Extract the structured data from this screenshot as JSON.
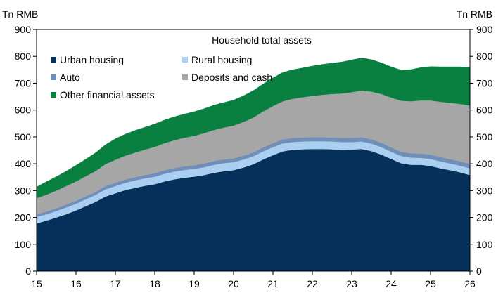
{
  "chart_data": {
    "type": "area",
    "stacked": true,
    "title": "Household total assets",
    "y_unit_left": "Tn RMB",
    "y_unit_right": "Tn RMB",
    "ylim": [
      0,
      900
    ],
    "y_ticks": [
      0,
      100,
      200,
      300,
      400,
      500,
      600,
      700,
      800,
      900
    ],
    "xlim": [
      15,
      26
    ],
    "x_ticks": [
      15,
      16,
      17,
      18,
      19,
      20,
      21,
      22,
      23,
      24,
      25,
      26
    ],
    "x_tick_labels": [
      "15",
      "16",
      "17",
      "18",
      "19",
      "20",
      "21",
      "22",
      "23",
      "24",
      "25",
      "26"
    ],
    "grid": false,
    "legend_position": "top-left",
    "x": [
      15.0,
      15.25,
      15.5,
      15.75,
      16.0,
      16.25,
      16.5,
      16.75,
      17.0,
      17.25,
      17.5,
      17.75,
      18.0,
      18.25,
      18.5,
      18.75,
      19.0,
      19.25,
      19.5,
      19.75,
      20.0,
      20.25,
      20.5,
      20.75,
      21.0,
      21.25,
      21.5,
      21.75,
      22.0,
      22.25,
      22.5,
      22.75,
      23.0,
      23.25,
      23.5,
      23.75,
      24.0,
      24.25,
      24.5,
      24.75,
      25.0,
      25.25,
      25.5,
      25.75,
      26.0
    ],
    "series": [
      {
        "name": "Urban housing",
        "color": "#06305a",
        "values": [
          178,
          188,
          200,
          212,
          226,
          242,
          258,
          278,
          290,
          302,
          310,
          318,
          324,
          334,
          342,
          348,
          352,
          358,
          366,
          372,
          376,
          386,
          398,
          416,
          432,
          446,
          452,
          454,
          455,
          455,
          454,
          452,
          453,
          455,
          447,
          434,
          418,
          402,
          396,
          396,
          392,
          383,
          376,
          368,
          358
        ]
      },
      {
        "name": "Rural housing",
        "color": "#aacff0",
        "values": [
          24,
          24,
          24,
          25,
          25,
          26,
          26,
          27,
          27,
          27,
          28,
          28,
          28,
          29,
          29,
          29,
          29,
          29,
          30,
          30,
          30,
          30,
          30,
          30,
          30,
          30,
          29,
          29,
          29,
          29,
          29,
          29,
          28,
          28,
          28,
          28,
          27,
          27,
          27,
          26,
          26,
          26,
          25,
          25,
          25
        ]
      },
      {
        "name": "Auto",
        "color": "#6f8fb9",
        "values": [
          10,
          10,
          10,
          11,
          11,
          11,
          11,
          12,
          12,
          12,
          12,
          12,
          13,
          13,
          13,
          13,
          13,
          14,
          14,
          14,
          14,
          14,
          14,
          15,
          15,
          15,
          15,
          15,
          15,
          15,
          15,
          15,
          16,
          16,
          16,
          16,
          16,
          16,
          16,
          16,
          16,
          16,
          16,
          16,
          16
        ]
      },
      {
        "name": "Deposits and cash",
        "color": "#a6a6a6",
        "values": [
          60,
          63,
          66,
          69,
          72,
          75,
          78,
          82,
          86,
          89,
          92,
          95,
          98,
          101,
          104,
          107,
          110,
          113,
          116,
          119,
          122,
          126,
          130,
          134,
          138,
          142,
          146,
          150,
          154,
          158,
          162,
          166,
          170,
          174,
          178,
          182,
          186,
          190,
          194,
          198,
          202,
          206,
          210,
          214,
          218
        ]
      },
      {
        "name": "Other financial assets",
        "color": "#098040",
        "values": [
          42,
          48,
          52,
          55,
          60,
          63,
          68,
          72,
          78,
          80,
          82,
          83,
          85,
          86,
          87,
          88,
          90,
          91,
          92,
          93,
          95,
          97,
          100,
          102,
          105,
          107,
          108,
          109,
          111,
          113,
          115,
          117,
          120,
          121,
          119,
          116,
          114,
          114,
          118,
          122,
          126,
          130,
          134,
          138,
          142
        ]
      }
    ]
  }
}
